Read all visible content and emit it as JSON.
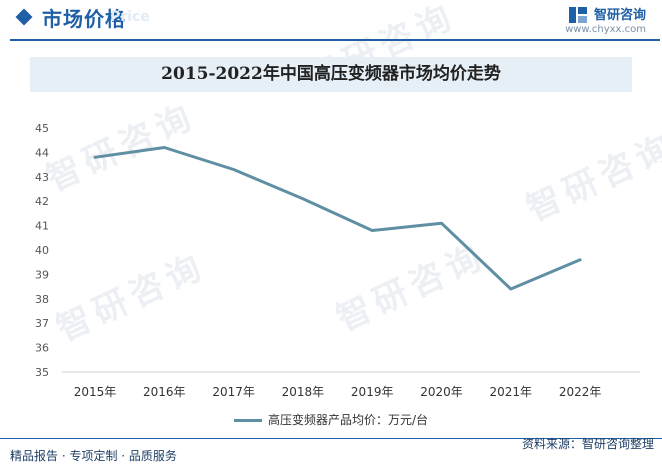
{
  "header": {
    "title": "市场价格",
    "ghost_text": "Price",
    "brand_name": "智研咨询",
    "brand_url": "www.chyxx.com",
    "accent_color": "#1f5fa6"
  },
  "watermark": "智研咨询",
  "chart_data": {
    "type": "line",
    "title": "2015-2022年中国高压变频器市场均价走势",
    "xlabel": "",
    "ylabel": "",
    "categories": [
      "2015年",
      "2016年",
      "2017年",
      "2018年",
      "2019年",
      "2020年",
      "2021年",
      "2022年"
    ],
    "series": [
      {
        "name": "高压变频器产品均价：万元/台",
        "values": [
          43.8,
          44.2,
          43.3,
          42.1,
          40.8,
          41.1,
          38.4,
          39.6
        ],
        "color": "#5f8fa3"
      }
    ],
    "ylim": [
      35,
      45
    ],
    "yticks": [
      35,
      36,
      37,
      38,
      39,
      40,
      41,
      42,
      43,
      44,
      45
    ],
    "grid": false,
    "legend_position": "bottom"
  },
  "footer": {
    "left_text": "精品报告 · 专项定制 · 品质服务",
    "right_text": "资料来源：智研咨询整理"
  }
}
